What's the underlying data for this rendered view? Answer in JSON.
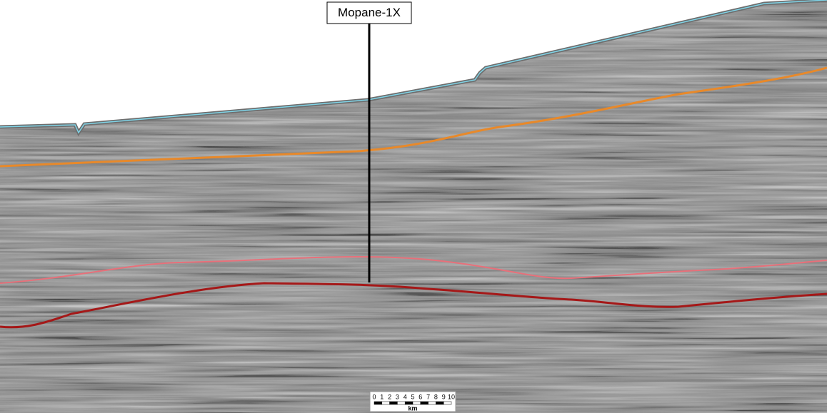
{
  "well": {
    "label": "Mopane-1X"
  },
  "scale_bar": {
    "ticks": [
      0,
      1,
      2,
      3,
      4,
      5,
      6,
      7,
      8,
      9,
      10
    ],
    "unit": "km"
  }
}
